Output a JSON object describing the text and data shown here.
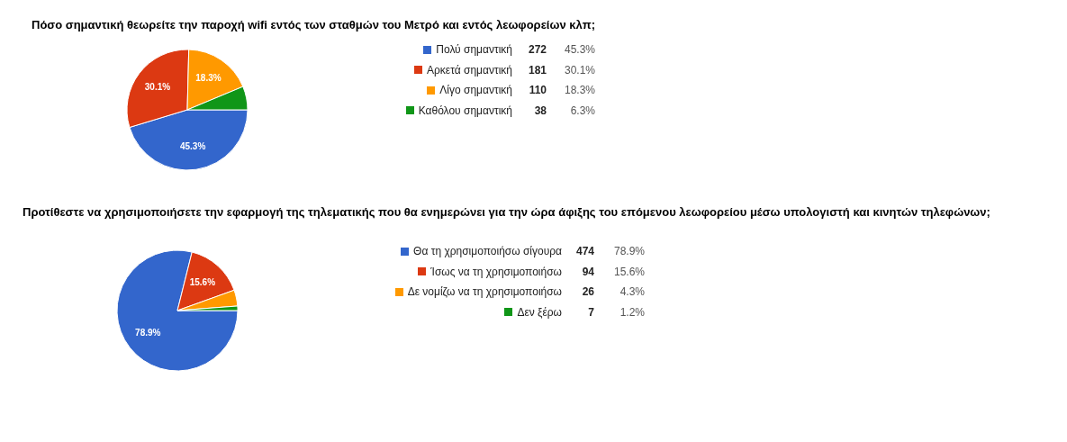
{
  "chart_data": [
    {
      "type": "pie",
      "title": "Πόσο σημαντική θεωρείτε την παροχή wifi εντός των σταθμών του Μετρό και εντός λεωφορείων κλπ;",
      "categories": [
        "Πολύ σημαντική",
        "Αρκετά σημαντική",
        "Λίγο σημαντική",
        "Καθόλου σημαντική"
      ],
      "values": [
        45.3,
        30.1,
        18.3,
        6.3
      ],
      "colors": [
        "#3366cc",
        "#dc3912",
        "#ff9900",
        "#109618"
      ],
      "value_labels": [
        "45.3%",
        "30.1%",
        "18.3%",
        "6.3%"
      ],
      "annotations": [
        "272",
        "181",
        "110",
        "38"
      ],
      "legend": "right"
    },
    {
      "type": "pie",
      "title": "Προτίθεστε να χρησιμοποιήσετε την εφαρμογή της τηλεματικής που θα ενημερώνει για την ώρα άφιξης του επόμενου λεωφορείου μέσω υπολογιστή και κινητών τηλεφώνων;",
      "categories": [
        "Θα τη χρησιμοποιήσω σίγουρα",
        "Ίσως να τη χρησιμοποιήσω",
        "Δε νομίζω να τη χρησιμοποιήσω",
        "Δεν ξέρω"
      ],
      "values": [
        78.9,
        15.6,
        4.3,
        1.2
      ],
      "colors": [
        "#3366cc",
        "#dc3912",
        "#ff9900",
        "#109618"
      ],
      "value_labels": [
        "78.9%",
        "15.6%",
        "4.3%",
        "1.2%"
      ],
      "annotations": [
        "474",
        "94",
        "26",
        "7"
      ],
      "legend": "right"
    }
  ]
}
